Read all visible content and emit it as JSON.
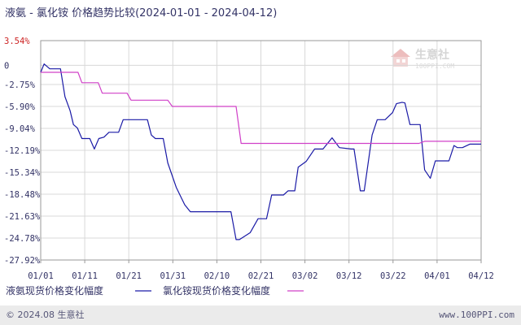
{
  "chart_data": {
    "type": "line",
    "title": "液氨 - 氯化铵 价格趋势比较(2024-01-01 - 2024-04-12)",
    "x_ticks": [
      "01/01",
      "01/11",
      "01/21",
      "01/31",
      "02/10",
      "02/21",
      "03/02",
      "03/12",
      "03/22",
      "04/01",
      "04/12"
    ],
    "y_ticks": [
      "3.54%",
      "0",
      "-2.75%",
      "-5.90%",
      "-9.04%",
      "-12.19%",
      "-15.34%",
      "-18.48%",
      "-21.63%",
      "-24.78%",
      "-27.92%"
    ],
    "y_tick_values": [
      3.54,
      0,
      -2.75,
      -5.9,
      -9.04,
      -12.19,
      -15.34,
      -18.48,
      -21.63,
      -24.78,
      -27.92
    ],
    "ylim": [
      -27.92,
      3.54
    ],
    "grid": true,
    "legend_position": "bottom",
    "series": [
      {
        "name": "液氨现货价格变化幅度",
        "color": "#1a1aa6",
        "points": [
          [
            0,
            -1.0
          ],
          [
            0.6,
            0.2
          ],
          [
            1.6,
            -0.5
          ],
          [
            3.5,
            -0.5
          ],
          [
            4.3,
            -4.5
          ],
          [
            5.2,
            -6.5
          ],
          [
            5.8,
            -8.5
          ],
          [
            6.5,
            -9.0
          ],
          [
            7.3,
            -10.5
          ],
          [
            8.7,
            -10.5
          ],
          [
            9.5,
            -12.0
          ],
          [
            10.3,
            -10.5
          ],
          [
            11.2,
            -10.3
          ],
          [
            12.1,
            -9.6
          ],
          [
            13.8,
            -9.6
          ],
          [
            14.6,
            -7.8
          ],
          [
            16.2,
            -7.8
          ],
          [
            18.9,
            -7.8
          ],
          [
            19.6,
            -10.0
          ],
          [
            20.3,
            -10.5
          ],
          [
            21.7,
            -10.5
          ],
          [
            22.5,
            -14.0
          ],
          [
            24.0,
            -17.5
          ],
          [
            25.5,
            -20.0
          ],
          [
            26.5,
            -21.0
          ],
          [
            29.5,
            -21.0
          ],
          [
            32.5,
            -21.0
          ],
          [
            33.7,
            -21.0
          ],
          [
            34.6,
            -25.0
          ],
          [
            35.2,
            -25.0
          ],
          [
            37.1,
            -24.0
          ],
          [
            38.5,
            -22.0
          ],
          [
            40.0,
            -22.0
          ],
          [
            40.9,
            -18.6
          ],
          [
            43.0,
            -18.6
          ],
          [
            43.8,
            -18.0
          ],
          [
            45.0,
            -18.0
          ],
          [
            45.6,
            -14.6
          ],
          [
            47.0,
            -13.8
          ],
          [
            48.5,
            -12.0
          ],
          [
            50.0,
            -12.0
          ],
          [
            51.6,
            -10.4
          ],
          [
            52.9,
            -11.8
          ],
          [
            55.0,
            -12.0
          ],
          [
            55.5,
            -12.0
          ],
          [
            56.6,
            -18.0
          ],
          [
            57.3,
            -18.0
          ],
          [
            58.7,
            -10.0
          ],
          [
            59.6,
            -7.8
          ],
          [
            61.0,
            -7.8
          ],
          [
            62.3,
            -6.8
          ],
          [
            63.0,
            -5.5
          ],
          [
            64.0,
            -5.3
          ],
          [
            64.5,
            -5.4
          ],
          [
            65.4,
            -8.5
          ],
          [
            67.2,
            -8.5
          ],
          [
            68.0,
            -15.0
          ],
          [
            69.0,
            -16.2
          ],
          [
            69.9,
            -13.7
          ],
          [
            72.3,
            -13.7
          ],
          [
            73.2,
            -11.5
          ],
          [
            73.8,
            -11.8
          ],
          [
            74.7,
            -11.8
          ],
          [
            76.0,
            -11.3
          ],
          [
            78.0,
            -11.3
          ]
        ]
      },
      {
        "name": "氯化铵现货价格变化幅度",
        "color": "#d040c8",
        "points": [
          [
            0,
            -1.0
          ],
          [
            3.0,
            -1.0
          ],
          [
            6.6,
            -1.0
          ],
          [
            7.3,
            -2.5
          ],
          [
            10.2,
            -2.5
          ],
          [
            10.9,
            -4.0
          ],
          [
            15.3,
            -4.0
          ],
          [
            16.0,
            -5.0
          ],
          [
            22.5,
            -5.0
          ],
          [
            23.3,
            -5.9
          ],
          [
            34.6,
            -5.9
          ],
          [
            35.5,
            -11.2
          ],
          [
            44.5,
            -11.2
          ],
          [
            45.0,
            -11.2
          ],
          [
            55.0,
            -11.2
          ],
          [
            67.0,
            -11.2
          ],
          [
            68.0,
            -10.9
          ],
          [
            78.0,
            -10.9
          ]
        ]
      }
    ],
    "x_domain": [
      0,
      78
    ]
  },
  "legend": {
    "series1_label": "液氨现货价格变化幅度",
    "series2_label": "氯化铵现货价格变化幅度"
  },
  "footer": {
    "left": "© 2024.08 生意社",
    "right": "www.100PPI.com"
  },
  "watermark": {
    "name": "生意社",
    "url": "100PPI.COM"
  },
  "colors": {
    "series1": "#1a1aa6",
    "series2": "#d040c8",
    "axis_text": "#333366",
    "grid": "#d8d8d8",
    "footer_bg": "#ebebeb"
  }
}
